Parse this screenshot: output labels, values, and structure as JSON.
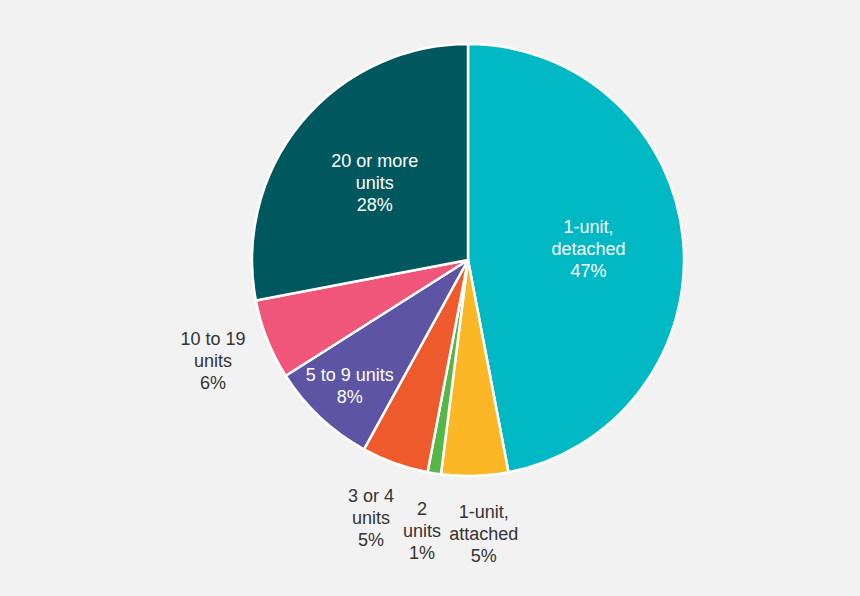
{
  "chart_data": {
    "type": "pie",
    "categories": [
      "1-unit,\ndetached",
      "1-unit,\nattached",
      "2\nunits",
      "3 or 4\nunits",
      "5 to 9 units",
      "10 to 19\nunits",
      "20 or more\nunits"
    ],
    "values": [
      47,
      5,
      1,
      5,
      8,
      6,
      28
    ],
    "value_labels": [
      "47%",
      "5%",
      "1%",
      "5%",
      "8%",
      "6%",
      "28%"
    ],
    "colors": [
      "#00b9c4",
      "#fbb726",
      "#55b748",
      "#ef5a2c",
      "#5d54a4",
      "#f0557a",
      "#00585f"
    ],
    "data_labels": true
  }
}
